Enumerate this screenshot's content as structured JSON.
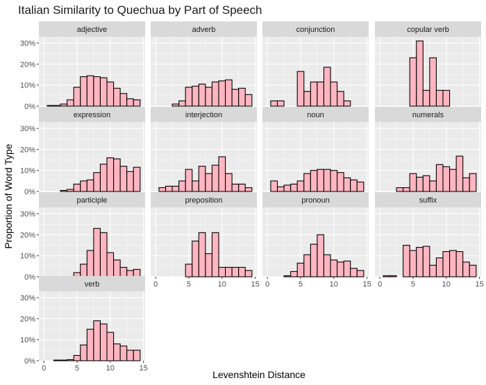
{
  "chart_data": {
    "type": "bar",
    "title": "Italian Similarity to Quechua by Part of Speech",
    "xlabel": "Levenshtein Distance",
    "ylabel": "Proportion of Word Type",
    "x_ticks": [
      0,
      5,
      10,
      15
    ],
    "y_ticks": [
      "0%",
      "10%",
      "20%",
      "30%"
    ],
    "xlim": [
      -0.75,
      15.25
    ],
    "ylim": [
      0,
      0.33
    ],
    "bins": [
      0,
      1,
      2,
      3,
      4,
      5,
      6,
      7,
      8,
      9,
      10,
      11,
      12,
      13,
      14
    ],
    "colors": {
      "fill": "#ffb6c1",
      "stroke": "#000000",
      "panel": "#ebebeb",
      "strip": "#d9d9d9",
      "grid": "#ffffff"
    },
    "panels": [
      {
        "name": "adjective",
        "values": [
          0,
          0.003,
          0.003,
          0.01,
          0.03,
          0.09,
          0.14,
          0.145,
          0.14,
          0.135,
          0.115,
          0.085,
          0.06,
          0.035,
          0.03
        ]
      },
      {
        "name": "adverb",
        "values": [
          0,
          0,
          0,
          0.01,
          0.025,
          0.09,
          0.095,
          0.105,
          0.09,
          0.115,
          0.12,
          0.125,
          0.08,
          0.085,
          0.055
        ]
      },
      {
        "name": "conjunction",
        "values": [
          0,
          0.025,
          0.025,
          0,
          0,
          0.165,
          0.07,
          0.115,
          0.115,
          0.185,
          0.115,
          0.07,
          0.025,
          0,
          0
        ]
      },
      {
        "name": "copular verb",
        "values": [
          0,
          0,
          0,
          0,
          0,
          0.23,
          0.31,
          0.075,
          0.23,
          0.075,
          0.075,
          0,
          0,
          0,
          0
        ]
      },
      {
        "name": "expression",
        "values": [
          0,
          0,
          0,
          0.005,
          0.01,
          0.035,
          0.05,
          0.055,
          0.09,
          0.13,
          0.16,
          0.155,
          0.12,
          0.095,
          0.115
        ]
      },
      {
        "name": "interjection",
        "values": [
          0,
          0.018,
          0.025,
          0.025,
          0.05,
          0.105,
          0.05,
          0.12,
          0.085,
          0.125,
          0.165,
          0.085,
          0.035,
          0.035,
          0.018
        ]
      },
      {
        "name": "noun",
        "values": [
          0,
          0.05,
          0.022,
          0.03,
          0.035,
          0.05,
          0.085,
          0.1,
          0.105,
          0.105,
          0.1,
          0.09,
          0.065,
          0.055,
          0.045
        ]
      },
      {
        "name": "numerals",
        "values": [
          0,
          0,
          0,
          0.018,
          0.018,
          0.085,
          0.068,
          0.075,
          0.05,
          0.128,
          0.118,
          0.105,
          0.168,
          0.065,
          0.085
        ]
      },
      {
        "name": "participle",
        "values": [
          0,
          0,
          0,
          0,
          0,
          0.02,
          0.06,
          0.125,
          0.23,
          0.21,
          0.115,
          0.08,
          0.045,
          0.03,
          0.035
        ]
      },
      {
        "name": "preposition",
        "values": [
          0,
          0,
          0,
          0,
          0,
          0.06,
          0.17,
          0.21,
          0.11,
          0.21,
          0.045,
          0.045,
          0.045,
          0.045,
          0.03
        ]
      },
      {
        "name": "pronoun",
        "values": [
          0,
          0,
          0,
          0.005,
          0.025,
          0.065,
          0.105,
          0.155,
          0.2,
          0.105,
          0.08,
          0.07,
          0.075,
          0.04,
          0.03
        ]
      },
      {
        "name": "suffix",
        "values": [
          0,
          0.005,
          0.005,
          0,
          0.15,
          0.125,
          0.14,
          0.145,
          0.055,
          0.09,
          0.12,
          0.125,
          0.12,
          0.07,
          0.055
        ]
      },
      {
        "name": "verb",
        "values": [
          0,
          0,
          0.003,
          0.003,
          0.005,
          0.025,
          0.075,
          0.15,
          0.19,
          0.175,
          0.135,
          0.08,
          0.07,
          0.05,
          0.05
        ]
      }
    ]
  }
}
